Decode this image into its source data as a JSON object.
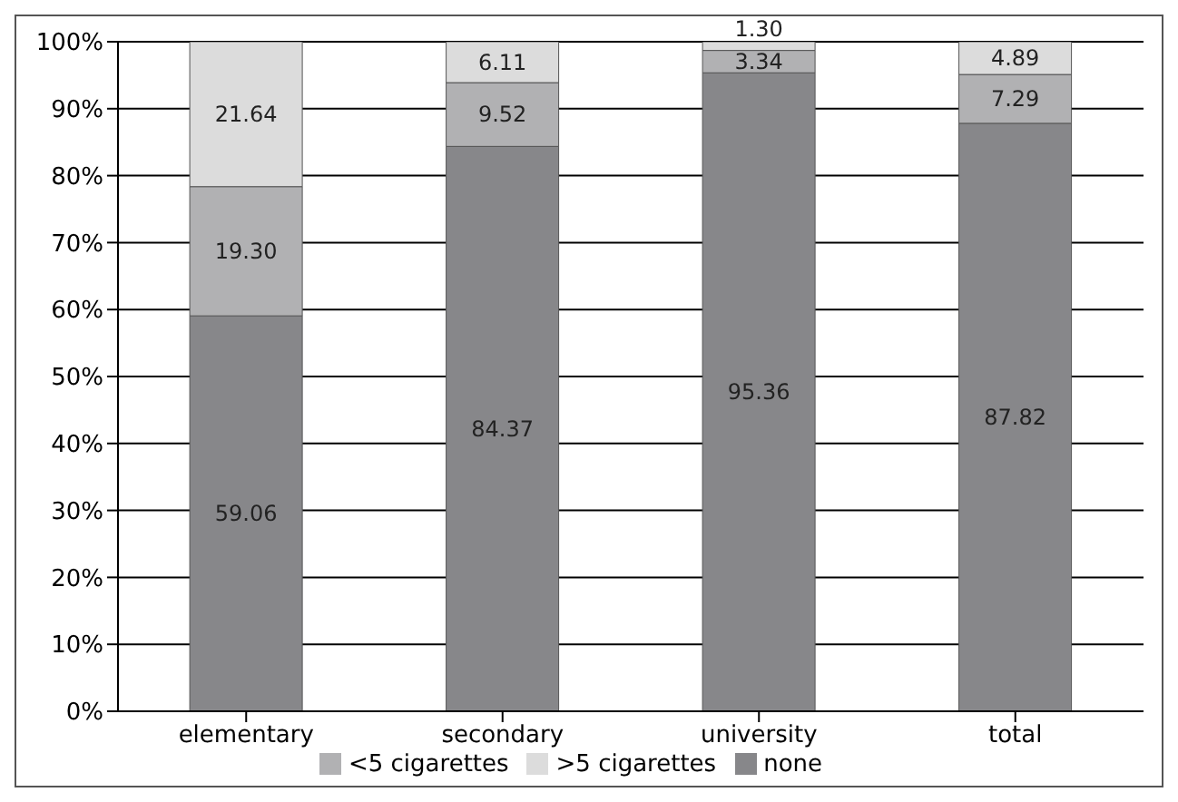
{
  "chart_data": {
    "type": "bar",
    "stacked": true,
    "categories": [
      "elementary",
      "secondary",
      "university",
      "total"
    ],
    "series": [
      {
        "name": "none",
        "color": "#87878a",
        "values": [
          59.06,
          84.37,
          95.36,
          87.82
        ],
        "value_labels": [
          "59.06",
          "84.37",
          "95.36",
          "87.82"
        ]
      },
      {
        "name": "<5 cigarettes",
        "color": "#b1b1b3",
        "values": [
          19.3,
          9.52,
          3.34,
          7.29
        ],
        "value_labels": [
          "19.30",
          "9.52",
          "3.34",
          "7.29"
        ]
      },
      {
        "name": ">5 cigarettes",
        "color": "#dcdcdc",
        "values": [
          21.64,
          6.11,
          1.3,
          4.89
        ],
        "value_labels": [
          "21.64",
          "6.11",
          "1.30",
          "4.89"
        ]
      }
    ],
    "ylim": [
      0,
      100
    ],
    "yticks": [
      {
        "value": 0,
        "label": "0%"
      },
      {
        "value": 10,
        "label": "10%"
      },
      {
        "value": 20,
        "label": "20%"
      },
      {
        "value": 30,
        "label": "30%"
      },
      {
        "value": 40,
        "label": "40%"
      },
      {
        "value": 50,
        "label": "50%"
      },
      {
        "value": 60,
        "label": "60%"
      },
      {
        "value": 70,
        "label": "70%"
      },
      {
        "value": 80,
        "label": "80%"
      },
      {
        "value": 90,
        "label": "90%"
      },
      {
        "value": 100,
        "label": "100%"
      }
    ],
    "grid": "y",
    "legend": "bottom"
  }
}
